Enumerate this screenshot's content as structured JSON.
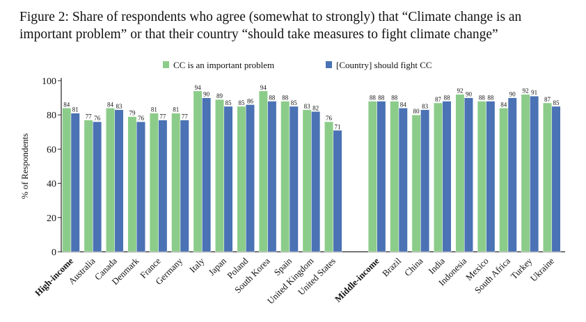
{
  "chart_data": {
    "type": "bar",
    "title": "Figure 2: Share of respondents who agree (somewhat to strongly) that “Climate change is an important problem” or that their country “should take measures to fight climate change”",
    "ylabel": "% of Respondents",
    "xlabel": "",
    "ylim": [
      0,
      100
    ],
    "yticks": [
      0,
      20,
      40,
      60,
      80,
      100
    ],
    "legend_position": "top",
    "groups": [
      {
        "label": "High-income",
        "categories": [
          "High-income",
          "Australia",
          "Canada",
          "Denmark",
          "France",
          "Germany",
          "Italy",
          "Japan",
          "Poland",
          "South Korea",
          "Spain",
          "United Kingdom",
          "United States"
        ]
      },
      {
        "label": "Middle-income",
        "categories": [
          "Middle-income",
          "Brazil",
          "China",
          "India",
          "Indonesia",
          "Mexico",
          "South Africa",
          "Turkey",
          "Ukraine"
        ]
      }
    ],
    "series": [
      {
        "name": "CC is an important problem",
        "color": "#8ccc8a",
        "values": [
          84,
          77,
          84,
          79,
          81,
          81,
          94,
          89,
          85,
          94,
          88,
          83,
          76,
          88,
          88,
          80,
          87,
          92,
          88,
          84,
          92,
          87
        ]
      },
      {
        "name": "[Country] should fight CC",
        "color": "#4a72b4",
        "values": [
          81,
          76,
          83,
          76,
          77,
          77,
          90,
          85,
          86,
          88,
          85,
          82,
          71,
          88,
          84,
          83,
          88,
          90,
          88,
          90,
          91,
          85
        ]
      }
    ],
    "bold_categories": [
      "High-income",
      "Middle-income"
    ]
  }
}
